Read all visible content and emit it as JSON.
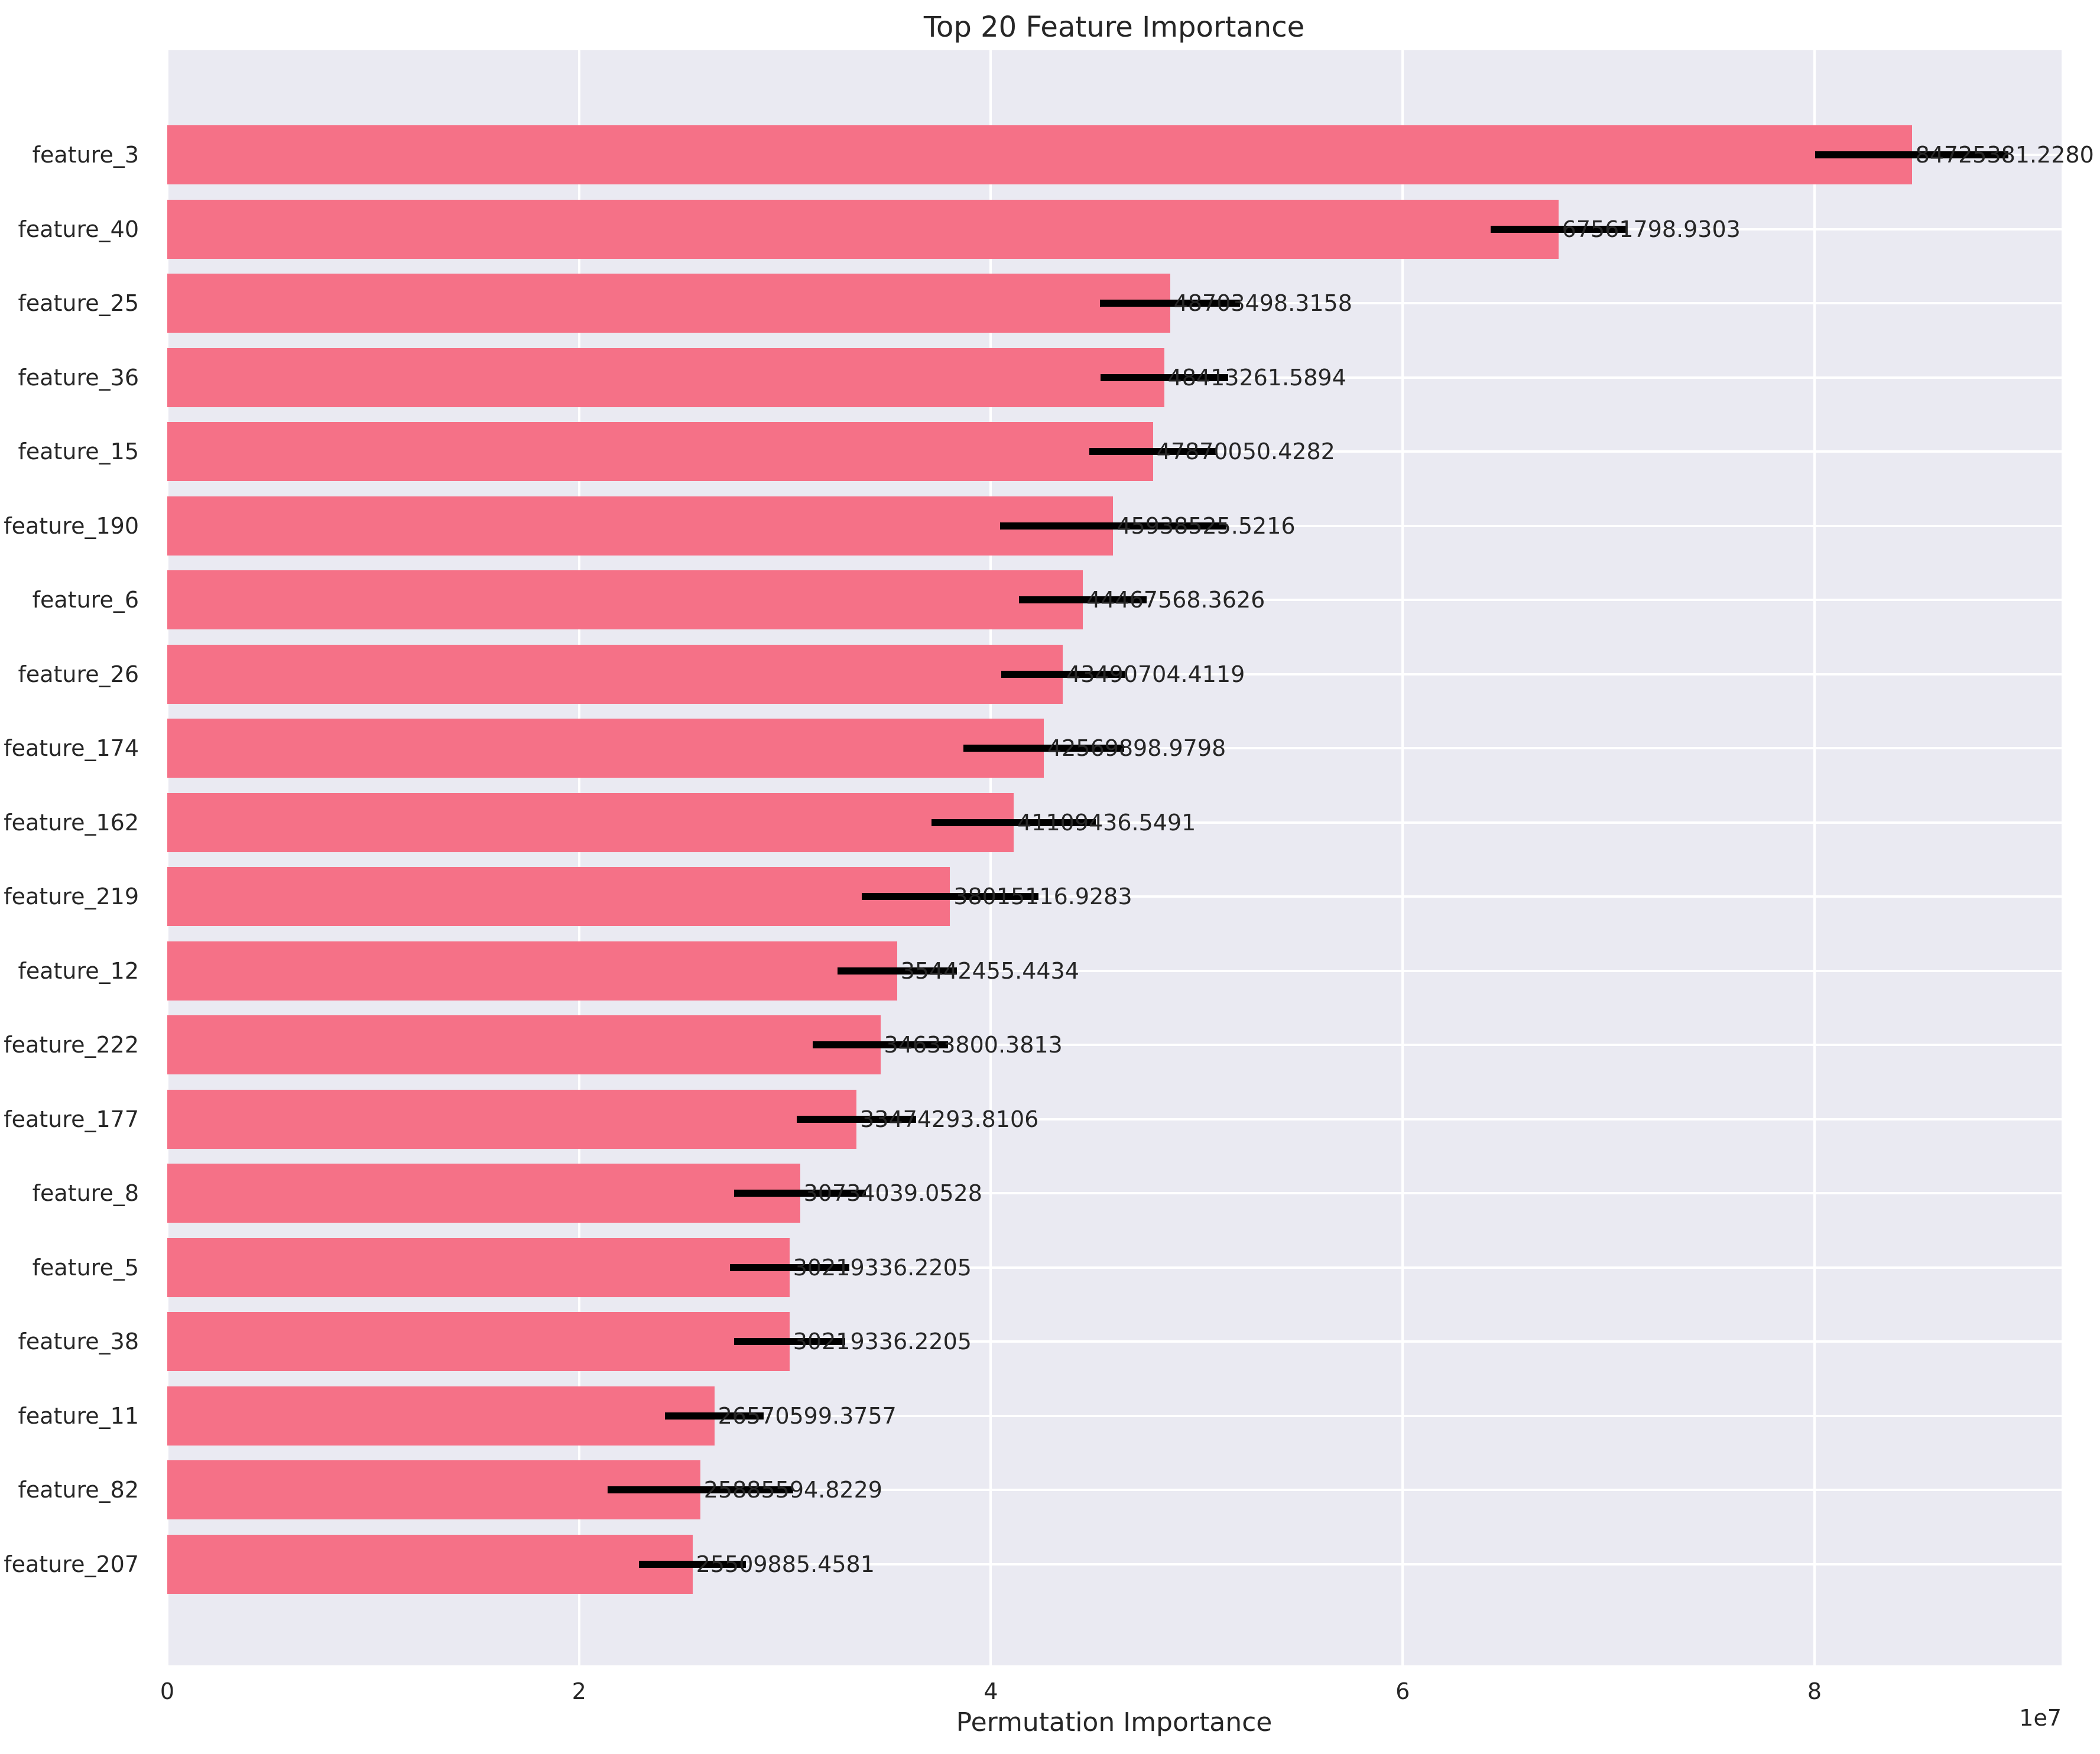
{
  "title": "Top 20 Feature Importance",
  "chart_data": {
    "type": "bar",
    "orientation": "horizontal",
    "title": "Top 20 Feature Importance",
    "xlabel": "Permutation Importance",
    "ylabel": "",
    "x_offset_label": "1e7",
    "x_ticks": [
      0,
      2,
      4,
      6,
      8
    ],
    "x_tick_scale": 10000000,
    "xlim": [
      0,
      92000000
    ],
    "grid": true,
    "legend_position": "none",
    "categories": [
      "feature_3",
      "feature_40",
      "feature_25",
      "feature_36",
      "feature_15",
      "feature_190",
      "feature_6",
      "feature_26",
      "feature_174",
      "feature_162",
      "feature_219",
      "feature_12",
      "feature_222",
      "feature_177",
      "feature_8",
      "feature_5",
      "feature_38",
      "feature_11",
      "feature_82",
      "feature_207"
    ],
    "values": [
      84725381.228,
      67561798.9303,
      48703498.3158,
      48413261.5894,
      47870050.4282,
      45938525.5216,
      44467568.3626,
      43490704.4119,
      42569898.9798,
      41109436.5491,
      38015116.9283,
      35442455.4434,
      34633800.3813,
      33474293.8106,
      30734039.0528,
      30219336.2205,
      30219336.2205,
      26570599.3757,
      25885594.8229,
      25509885.4581
    ],
    "value_labels": [
      "84725381.2280",
      "67561798.9303",
      "48703498.3158",
      "48413261.5894",
      "47870050.4282",
      "45938525.5216",
      "44467568.3626",
      "43490704.4119",
      "42569898.9798",
      "41109436.5491",
      "38015116.9283",
      "35442455.4434",
      "34633800.3813",
      "33474293.8106",
      "30734039.0528",
      "30219336.2205",
      "30219336.2205",
      "26570599.3757",
      "25885594.8229",
      "25509885.4581"
    ],
    "errors": [
      4700000,
      3300000,
      3400000,
      3100000,
      3100000,
      5500000,
      3100000,
      3000000,
      3900000,
      4000000,
      4300000,
      2900000,
      3300000,
      2900000,
      3200000,
      2900000,
      2700000,
      2400000,
      4500000,
      2600000
    ],
    "colors": {
      "bar": "#f57187",
      "plot_bg": "#eaeaf2",
      "grid": "#ffffff",
      "error_bar": "#000000",
      "text": "#262626"
    }
  }
}
